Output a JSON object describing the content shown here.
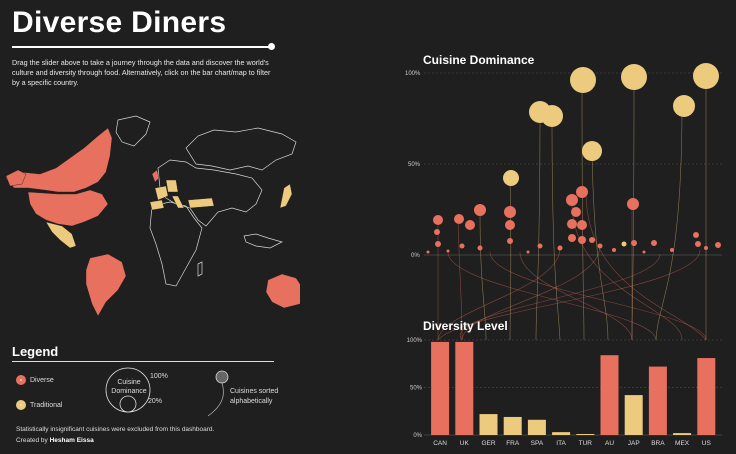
{
  "header": {
    "title": "Diverse Diners",
    "intro": "Drag the slider above to take a journey through the data and discover the world's culture and diversity through food. Alternatively, click on the bar chart/map to filter by a specific country."
  },
  "legend": {
    "title": "Legend",
    "diverse_label": "Diverse",
    "traditional_label": "Traditional",
    "bubble_label": "Cuisine Dominance",
    "bubble_max": "100%",
    "bubble_min": "20%",
    "sorted_label": "Cuisines sorted alphabetically"
  },
  "footer": {
    "note": "Statistically insignificant cuisines were excluded from this dashboard.",
    "created_prefix": "Created by",
    "author": "Hesham Eissa"
  },
  "colors": {
    "diverse": "#e8705e",
    "traditional": "#eccb7e",
    "background": "#1f1f1f"
  },
  "dominance": {
    "title": "Cuisine Dominance",
    "ticks": [
      "100%",
      "50%",
      "0%"
    ]
  },
  "chart_data": {
    "type": "bar",
    "title": "Diversity Level",
    "categories": [
      "CAN",
      "UK",
      "GER",
      "FRA",
      "SPA",
      "ITA",
      "TUR",
      "AU",
      "JAP",
      "BRA",
      "MEX",
      "US"
    ],
    "values": [
      98,
      98,
      22,
      19,
      16,
      3,
      1,
      84,
      42,
      72,
      2,
      81
    ],
    "diverse": [
      true,
      true,
      false,
      false,
      false,
      false,
      false,
      true,
      false,
      true,
      false,
      true
    ],
    "ylim": [
      0,
      100
    ],
    "yticks": [
      "100%",
      "50%",
      "0%"
    ]
  }
}
